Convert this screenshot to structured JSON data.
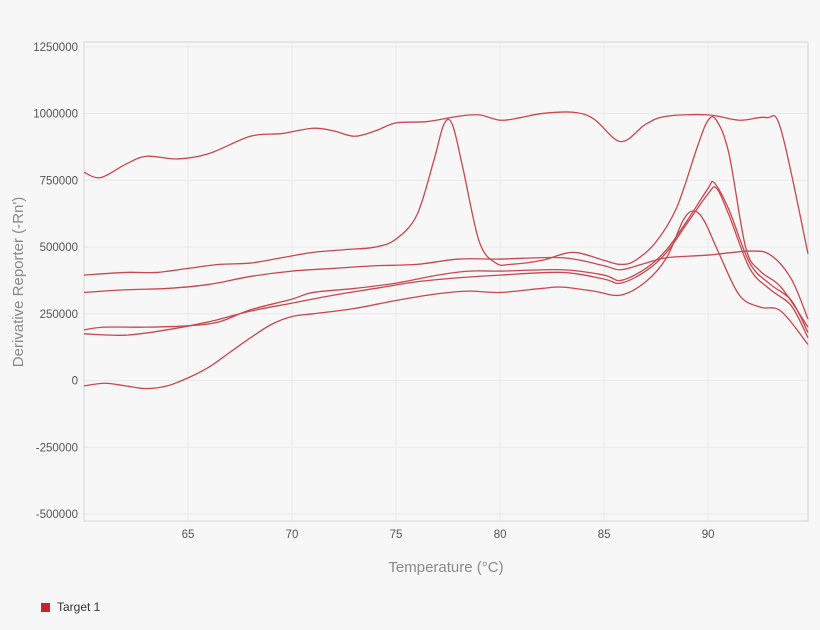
{
  "chart_data": {
    "type": "line",
    "title": "",
    "xlabel": "Temperature (°C)",
    "ylabel": "Derivative Reporter (-Rn')",
    "xlim": [
      60,
      94.8
    ],
    "ylim": [
      -526000,
      1268000
    ],
    "xticks": [
      65,
      70,
      75,
      80,
      85,
      90
    ],
    "yticks": [
      1250000,
      1000000,
      750000,
      500000,
      250000,
      0,
      -250000,
      -500000
    ],
    "ytick_labels": [
      "1250000",
      "1000000",
      "750000",
      "500000",
      "250000",
      "0",
      "-250000",
      "-500000"
    ],
    "xtick_labels": [
      "65",
      "70",
      "75",
      "80",
      "85",
      "90"
    ],
    "grid": true,
    "legend": {
      "placement": "bottom-left",
      "entries": [
        {
          "name": "Target 1",
          "color": "#c0272d"
        }
      ]
    },
    "line_color": "#c9474f",
    "series": [
      {
        "x": [
          60,
          60.8,
          62,
          63,
          64.5,
          66,
          68,
          69.5,
          71,
          72,
          73,
          74,
          75,
          76.5,
          78,
          79,
          80,
          81,
          82,
          83.5,
          84.5,
          85.8,
          87,
          88,
          90,
          91.5,
          92.8,
          93.5,
          94.8
        ],
        "y": [
          780000,
          760000,
          810000,
          840000,
          830000,
          850000,
          915000,
          925000,
          945000,
          935000,
          915000,
          935000,
          965000,
          970000,
          990000,
          995000,
          975000,
          985000,
          1000000,
          1005000,
          980000,
          895000,
          960000,
          990000,
          995000,
          975000,
          985000,
          940000,
          475000
        ]
      },
      {
        "x": [
          60,
          62,
          63.5,
          65,
          66.5,
          68,
          69.5,
          71,
          72.5,
          74,
          75,
          76,
          76.8,
          77.3,
          77.7,
          78.2,
          79,
          79.8,
          80.5,
          82,
          83.5,
          85,
          85.8,
          86.5,
          87.5,
          88.5,
          89.5,
          90,
          90.4,
          91,
          91.8,
          92.5,
          93.5,
          94.8
        ],
        "y": [
          395000,
          405000,
          405000,
          420000,
          435000,
          440000,
          460000,
          480000,
          490000,
          500000,
          530000,
          620000,
          820000,
          960000,
          960000,
          800000,
          520000,
          440000,
          435000,
          450000,
          480000,
          450000,
          435000,
          450000,
          520000,
          650000,
          880000,
          975000,
          975000,
          850000,
          500000,
          410000,
          350000,
          200000
        ]
      },
      {
        "x": [
          60,
          62,
          64,
          66,
          68,
          70,
          72,
          74,
          76,
          78,
          80,
          83,
          85,
          85.8,
          87,
          88,
          90,
          92,
          93,
          94,
          94.8
        ],
        "y": [
          330000,
          340000,
          345000,
          360000,
          390000,
          410000,
          420000,
          430000,
          435000,
          455000,
          455000,
          460000,
          430000,
          415000,
          440000,
          460000,
          470000,
          485000,
          470000,
          380000,
          230000
        ]
      },
      {
        "x": [
          60,
          61,
          63,
          65,
          66.5,
          68,
          70,
          71,
          73,
          75,
          77,
          78.5,
          80,
          83,
          85,
          85.8,
          87,
          88,
          89,
          90,
          90.3,
          91,
          92,
          93,
          94,
          94.8
        ],
        "y": [
          190000,
          200000,
          200000,
          205000,
          220000,
          265000,
          305000,
          330000,
          345000,
          365000,
          395000,
          410000,
          410000,
          415000,
          395000,
          375000,
          420000,
          490000,
          600000,
          720000,
          740000,
          640000,
          440000,
          360000,
          300000,
          180000
        ]
      },
      {
        "x": [
          60,
          62,
          64,
          66,
          68,
          70,
          72,
          74,
          76,
          78,
          80,
          83,
          85,
          85.8,
          87,
          88,
          89,
          90,
          90.4,
          91,
          92,
          93,
          94,
          94.8
        ],
        "y": [
          175000,
          170000,
          190000,
          220000,
          260000,
          290000,
          320000,
          345000,
          370000,
          385000,
          395000,
          405000,
          380000,
          365000,
          410000,
          480000,
          590000,
          700000,
          720000,
          620000,
          420000,
          340000,
          280000,
          160000
        ]
      },
      {
        "x": [
          60,
          61,
          62,
          63,
          64,
          65,
          66,
          67,
          68,
          69,
          70,
          71,
          73,
          75,
          77,
          78.5,
          80,
          82,
          83,
          84.5,
          85.8,
          87,
          88,
          88.8,
          89.3,
          89.8,
          90.5,
          91.5,
          92.5,
          93.5,
          94.8
        ],
        "y": [
          -20000,
          -10000,
          -20000,
          -30000,
          -20000,
          10000,
          50000,
          105000,
          160000,
          210000,
          240000,
          250000,
          270000,
          300000,
          325000,
          335000,
          330000,
          345000,
          350000,
          335000,
          320000,
          370000,
          460000,
          600000,
          635000,
          600000,
          480000,
          320000,
          275000,
          260000,
          135000
        ]
      }
    ]
  }
}
